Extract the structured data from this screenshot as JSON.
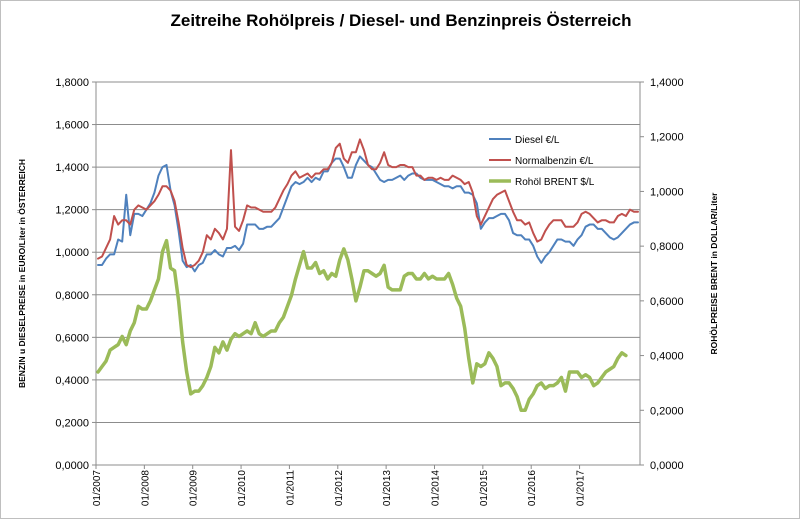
{
  "chart_data": {
    "type": "line",
    "title": "Zeitreihe Rohölpreis / Diesel- und Benzinpreis Österreich",
    "ylabel_left": "BENZIN u DIESELPREISE in EURO/Liter in ÖSTERREICH",
    "ylabel_right": "ROHÖLPREISE BRENT in DOLLAR/Liter",
    "xlabel": "",
    "x_start_month": "01/2007",
    "x_ticks": [
      "01/2007",
      "01/2008",
      "01/2009",
      "01/2010",
      "01/2011",
      "01/2012",
      "01/2013",
      "01/2014",
      "01/2015",
      "01/2016",
      "01/2017"
    ],
    "y_left": {
      "min": 0,
      "max": 1.8,
      "step": 0.2,
      "tick_labels": [
        "0,0000",
        "0,2000",
        "0,4000",
        "0,6000",
        "0,8000",
        "1,0000",
        "1,2000",
        "1,4000",
        "1,6000",
        "1,8000"
      ]
    },
    "y_right": {
      "min": 0,
      "max": 1.4,
      "step": 0.2,
      "tick_labels": [
        "0,0000",
        "0,2000",
        "0,4000",
        "0,6000",
        "0,8000",
        "1,0000",
        "1,2000",
        "1,4000"
      ]
    },
    "grid": "horizontal",
    "legend_position": "right",
    "series": [
      {
        "name": "Diesel €/L",
        "axis": "left",
        "color": "#4f81bd",
        "values": [
          0.94,
          0.94,
          0.97,
          0.99,
          0.99,
          1.06,
          1.05,
          1.27,
          1.08,
          1.18,
          1.18,
          1.17,
          1.2,
          1.23,
          1.28,
          1.36,
          1.4,
          1.41,
          1.29,
          1.22,
          1.1,
          0.96,
          0.93,
          0.94,
          0.91,
          0.94,
          0.95,
          0.99,
          0.99,
          1.01,
          0.99,
          0.98,
          1.02,
          1.02,
          1.03,
          1.01,
          1.04,
          1.13,
          1.13,
          1.13,
          1.11,
          1.11,
          1.12,
          1.12,
          1.14,
          1.16,
          1.21,
          1.26,
          1.31,
          1.33,
          1.32,
          1.33,
          1.35,
          1.33,
          1.35,
          1.34,
          1.38,
          1.38,
          1.42,
          1.44,
          1.44,
          1.4,
          1.35,
          1.35,
          1.41,
          1.45,
          1.43,
          1.41,
          1.4,
          1.37,
          1.34,
          1.33,
          1.34,
          1.34,
          1.35,
          1.36,
          1.34,
          1.36,
          1.37,
          1.37,
          1.35,
          1.34,
          1.34,
          1.34,
          1.33,
          1.32,
          1.31,
          1.31,
          1.3,
          1.31,
          1.31,
          1.28,
          1.28,
          1.27,
          1.23,
          1.11,
          1.14,
          1.16,
          1.16,
          1.17,
          1.18,
          1.18,
          1.15,
          1.09,
          1.08,
          1.08,
          1.06,
          1.06,
          1.03,
          0.98,
          0.95,
          0.98,
          1.0,
          1.03,
          1.06,
          1.06,
          1.05,
          1.05,
          1.03,
          1.06,
          1.08,
          1.12,
          1.13,
          1.13,
          1.11,
          1.11,
          1.09,
          1.07,
          1.06,
          1.07,
          1.09,
          1.11,
          1.13,
          1.14,
          1.14
        ]
      },
      {
        "name": "Normalbenzin €/L",
        "axis": "left",
        "color": "#c0504d",
        "values": [
          0.97,
          0.98,
          1.02,
          1.06,
          1.17,
          1.13,
          1.15,
          1.15,
          1.13,
          1.2,
          1.22,
          1.21,
          1.2,
          1.22,
          1.24,
          1.27,
          1.31,
          1.31,
          1.29,
          1.24,
          1.14,
          1.02,
          0.94,
          0.93,
          0.94,
          0.96,
          1.0,
          1.08,
          1.06,
          1.11,
          1.09,
          1.06,
          1.11,
          1.48,
          1.12,
          1.1,
          1.15,
          1.22,
          1.21,
          1.21,
          1.2,
          1.19,
          1.19,
          1.19,
          1.21,
          1.25,
          1.29,
          1.32,
          1.36,
          1.38,
          1.35,
          1.36,
          1.37,
          1.35,
          1.37,
          1.37,
          1.39,
          1.39,
          1.42,
          1.49,
          1.51,
          1.44,
          1.42,
          1.47,
          1.47,
          1.53,
          1.48,
          1.41,
          1.39,
          1.39,
          1.42,
          1.47,
          1.41,
          1.4,
          1.4,
          1.41,
          1.41,
          1.4,
          1.4,
          1.36,
          1.36,
          1.34,
          1.35,
          1.35,
          1.34,
          1.35,
          1.34,
          1.34,
          1.36,
          1.35,
          1.34,
          1.32,
          1.33,
          1.28,
          1.17,
          1.13,
          1.17,
          1.21,
          1.25,
          1.27,
          1.28,
          1.29,
          1.24,
          1.19,
          1.15,
          1.15,
          1.13,
          1.14,
          1.09,
          1.05,
          1.06,
          1.1,
          1.13,
          1.15,
          1.15,
          1.15,
          1.12,
          1.12,
          1.12,
          1.14,
          1.18,
          1.19,
          1.18,
          1.16,
          1.14,
          1.15,
          1.15,
          1.14,
          1.14,
          1.17,
          1.18,
          1.17,
          1.2,
          1.19,
          1.19
        ]
      },
      {
        "name": "Rohöl BRENT $/L",
        "axis": "right",
        "color": "#9bbb59",
        "values": [
          0.34,
          0.36,
          0.38,
          0.42,
          0.43,
          0.44,
          0.47,
          0.44,
          0.49,
          0.52,
          0.58,
          0.57,
          0.57,
          0.6,
          0.64,
          0.68,
          0.78,
          0.82,
          0.72,
          0.71,
          0.6,
          0.45,
          0.34,
          0.26,
          0.27,
          0.27,
          0.29,
          0.32,
          0.36,
          0.43,
          0.41,
          0.45,
          0.42,
          0.46,
          0.48,
          0.47,
          0.48,
          0.49,
          0.48,
          0.52,
          0.48,
          0.47,
          0.48,
          0.49,
          0.49,
          0.52,
          0.54,
          0.58,
          0.62,
          0.68,
          0.73,
          0.78,
          0.72,
          0.72,
          0.74,
          0.7,
          0.71,
          0.68,
          0.7,
          0.69,
          0.75,
          0.79,
          0.75,
          0.68,
          0.6,
          0.65,
          0.71,
          0.71,
          0.7,
          0.69,
          0.7,
          0.73,
          0.65,
          0.64,
          0.64,
          0.64,
          0.69,
          0.7,
          0.7,
          0.68,
          0.68,
          0.7,
          0.68,
          0.69,
          0.68,
          0.68,
          0.68,
          0.7,
          0.66,
          0.61,
          0.58,
          0.5,
          0.39,
          0.3,
          0.37,
          0.36,
          0.37,
          0.41,
          0.39,
          0.36,
          0.29,
          0.3,
          0.3,
          0.28,
          0.25,
          0.2,
          0.2,
          0.24,
          0.26,
          0.29,
          0.3,
          0.28,
          0.29,
          0.29,
          0.3,
          0.32,
          0.27,
          0.34,
          0.34,
          0.34,
          0.32,
          0.33,
          0.32,
          0.29,
          0.3,
          0.32,
          0.34,
          0.35,
          0.36,
          0.39,
          0.41,
          0.4
        ]
      }
    ]
  }
}
